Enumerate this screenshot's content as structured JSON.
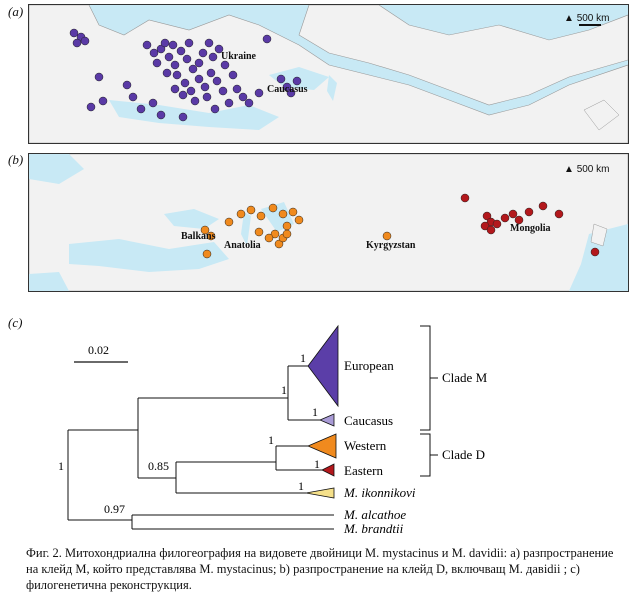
{
  "panels": {
    "a": {
      "label": "(a)",
      "scale": "500 km",
      "places": [
        "Ukraine",
        "Caucasus"
      ],
      "dot_color": "#5a3aa6"
    },
    "b": {
      "label": "(b)",
      "scale": "500 km",
      "places": [
        "Balkans",
        "Anatolia",
        "Kyrgyzstan",
        "Mongolia"
      ],
      "dot_colors": [
        "#f08a1e",
        "#b3181c"
      ]
    },
    "c": {
      "label": "(c)"
    }
  },
  "tree": {
    "scale_bar": "0.02",
    "supports": [
      "1",
      "1",
      "1",
      "0.85",
      "1",
      "1",
      "1",
      "1",
      "0.97"
    ],
    "tips": [
      "European",
      "Caucasus",
      "Western",
      "Eastern",
      "M. ikonnikovi",
      "M. alcathoe",
      "M. brandtii"
    ],
    "clades": [
      "Clade M",
      "Clade D"
    ],
    "colors": {
      "european": "#5b3ea8",
      "caucasus": "#a99bd6",
      "western": "#f08a1e",
      "eastern": "#b3181c",
      "ikonnikovi": "#f5e08a"
    }
  },
  "caption": {
    "text": "Фиг. 2. Митохондриална филогеография на видовете двойници M. mystacinus и M. davidii: a) разпространение на клейд M, който представлява M. mystacinus; b) разпространение на клейд D, включващ M. давidii ; c) филогенетична реконструкция."
  }
}
